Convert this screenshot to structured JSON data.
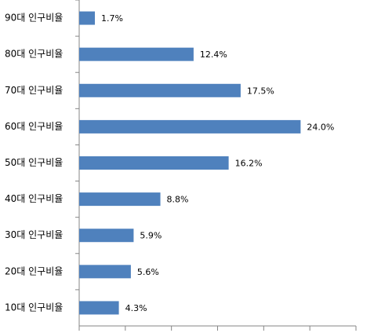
{
  "chart_data": {
    "type": "bar",
    "orientation": "horizontal",
    "categories": [
      "90대 인구비율",
      "80대 인구비율",
      "70대 인구비율",
      "60대 인구비율",
      "50대 인구비율",
      "40대 인구비율",
      "30대 인구비율",
      "20대 인구비율",
      "10대 인구비율"
    ],
    "values": [
      1.7,
      12.4,
      17.5,
      24.0,
      16.2,
      8.8,
      5.9,
      5.6,
      4.3
    ],
    "value_labels": [
      "1.7%",
      "12.4%",
      "17.5%",
      "24.0%",
      "16.2%",
      "8.8%",
      "5.9%",
      "5.6%",
      "4.3%"
    ],
    "color": "#4f81bd",
    "xlim": [
      0,
      30
    ],
    "xticks": [
      0,
      5,
      10,
      15,
      20,
      25,
      30
    ]
  }
}
